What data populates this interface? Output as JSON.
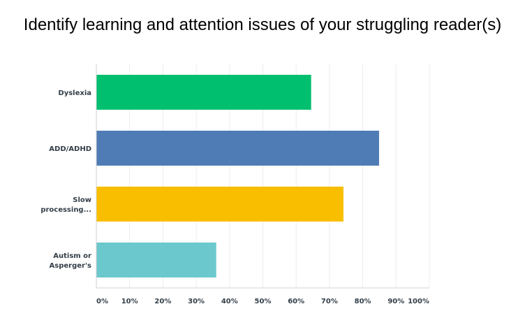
{
  "chart_data": {
    "type": "bar",
    "orientation": "horizontal",
    "title": "Identify learning and attention issues of your struggling reader(s)",
    "categories": [
      [
        "Dyslexia"
      ],
      [
        "ADD/ADHD"
      ],
      [
        "Slow",
        "processing..."
      ],
      [
        "Autism or",
        "Asperger's"
      ]
    ],
    "values": [
      64.5,
      84.9,
      74.2,
      36.0
    ],
    "colors": [
      "#00bf6f",
      "#507cb6",
      "#f9be00",
      "#6bc8cd"
    ],
    "xlim": [
      0,
      100
    ],
    "xticks": [
      "0%",
      "10%",
      "20%",
      "30%",
      "40%",
      "50%",
      "60%",
      "70%",
      "80%",
      "90%",
      "100%"
    ],
    "xtick_values": [
      0,
      10,
      20,
      30,
      40,
      50,
      60,
      70,
      80,
      90,
      100
    ],
    "grid": true,
    "legend": "none"
  }
}
